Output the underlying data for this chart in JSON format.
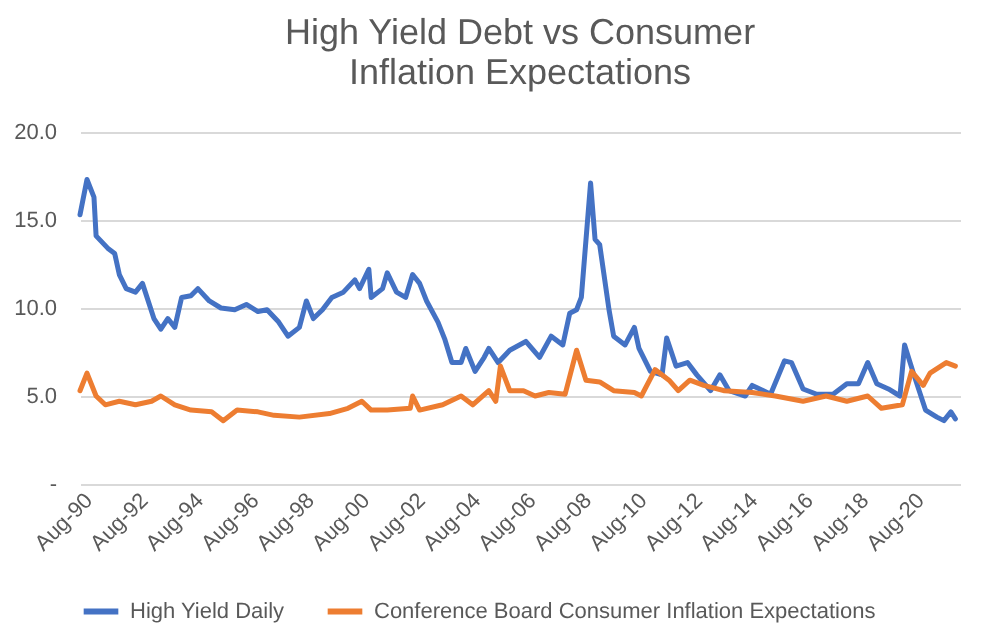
{
  "chart_data": {
    "type": "line",
    "title": "High Yield Debt vs Consumer Inflation Expectations",
    "xlim": [
      "1990-08",
      "2022-05"
    ],
    "xticks": [
      {
        "value": "1990-08",
        "label": "Aug-90"
      },
      {
        "value": "1992-08",
        "label": "Aug-92"
      },
      {
        "value": "1994-08",
        "label": "Aug-94"
      },
      {
        "value": "1996-08",
        "label": "Aug-96"
      },
      {
        "value": "1998-08",
        "label": "Aug-98"
      },
      {
        "value": "2000-08",
        "label": "Aug-00"
      },
      {
        "value": "2002-08",
        "label": "Aug-02"
      },
      {
        "value": "2004-08",
        "label": "Aug-04"
      },
      {
        "value": "2006-08",
        "label": "Aug-06"
      },
      {
        "value": "2008-08",
        "label": "Aug-08"
      },
      {
        "value": "2010-08",
        "label": "Aug-10"
      },
      {
        "value": "2012-08",
        "label": "Aug-12"
      },
      {
        "value": "2014-08",
        "label": "Aug-14"
      },
      {
        "value": "2016-08",
        "label": "Aug-16"
      },
      {
        "value": "2018-08",
        "label": "Aug-18"
      },
      {
        "value": "2020-08",
        "label": "Aug-20"
      }
    ],
    "ylim": [
      0,
      20
    ],
    "yticks": [
      {
        "value": 0,
        "label": "-"
      },
      {
        "value": 5,
        "label": "5.0"
      },
      {
        "value": 10,
        "label": "10.0"
      },
      {
        "value": 15,
        "label": "15.0"
      },
      {
        "value": 20,
        "label": "20.0"
      }
    ],
    "grid": "y",
    "legend": "bottom",
    "marker": "none",
    "line_style": "solid",
    "series": [
      {
        "name": "High Yield Daily",
        "color": "#4472c4",
        "x": [
          "1990-08",
          "1990-11",
          "1991-02",
          "1991-03",
          "1991-08",
          "1991-11",
          "1992-01",
          "1992-04",
          "1992-08",
          "1992-11",
          "1993-04",
          "1993-07",
          "1993-10",
          "1994-01",
          "1994-04",
          "1994-08",
          "1994-11",
          "1995-04",
          "1995-09",
          "1996-03",
          "1996-08",
          "1997-01",
          "1997-05",
          "1997-10",
          "1998-02",
          "1998-07",
          "1998-10",
          "1999-01",
          "1999-05",
          "1999-09",
          "2000-02",
          "2000-07",
          "2000-09",
          "2001-01",
          "2001-02",
          "2001-07",
          "2001-09",
          "2002-01",
          "2002-05",
          "2002-08",
          "2002-11",
          "2003-02",
          "2003-07",
          "2003-10",
          "2004-01",
          "2004-05",
          "2004-07",
          "2004-11",
          "2005-03",
          "2005-05",
          "2005-09",
          "2006-02",
          "2006-09",
          "2007-03",
          "2007-08",
          "2008-01",
          "2008-04",
          "2008-07",
          "2008-09",
          "2009-01",
          "2009-03",
          "2009-05",
          "2009-09",
          "2009-11",
          "2010-04",
          "2010-08",
          "2010-10",
          "2011-03",
          "2011-08",
          "2011-10",
          "2012-02",
          "2012-07",
          "2012-11",
          "2013-05",
          "2013-09",
          "2014-01",
          "2014-08",
          "2014-11",
          "2015-07",
          "2016-01",
          "2016-04",
          "2016-09",
          "2017-03",
          "2017-10",
          "2018-04",
          "2018-09",
          "2019-01",
          "2019-05",
          "2019-10",
          "2020-03",
          "2020-05",
          "2020-09",
          "2021-02",
          "2021-07",
          "2021-10",
          "2022-01",
          "2022-03"
        ],
        "values": [
          15.3,
          17.3,
          16.3,
          14.1,
          13.4,
          13.1,
          11.9,
          11.1,
          10.9,
          11.4,
          9.4,
          8.8,
          9.4,
          8.9,
          10.6,
          10.7,
          11.1,
          10.4,
          10.0,
          9.9,
          10.2,
          9.8,
          9.9,
          9.2,
          8.4,
          8.9,
          10.4,
          9.4,
          9.9,
          10.6,
          10.9,
          11.6,
          11.1,
          12.2,
          10.6,
          11.1,
          12.0,
          10.9,
          10.6,
          11.9,
          11.4,
          10.4,
          9.2,
          8.2,
          6.9,
          6.9,
          7.7,
          6.4,
          7.2,
          7.7,
          6.9,
          7.6,
          8.1,
          7.2,
          8.4,
          7.9,
          9.7,
          9.9,
          10.6,
          17.1,
          13.9,
          13.6,
          9.9,
          8.4,
          7.9,
          8.9,
          7.7,
          6.4,
          6.2,
          8.3,
          6.7,
          6.9,
          6.2,
          5.3,
          6.2,
          5.3,
          5.0,
          5.6,
          5.1,
          7.0,
          6.9,
          5.4,
          5.1,
          5.1,
          5.7,
          5.7,
          6.9,
          5.7,
          5.4,
          5.0,
          7.9,
          6.2,
          4.2,
          3.8,
          3.6,
          4.1,
          3.7
        ]
      },
      {
        "name": "Conference Board Consumer Inflation Expectations",
        "color": "#ed7d31",
        "x": [
          "1990-08",
          "1990-11",
          "1991-03",
          "1991-07",
          "1992-01",
          "1992-08",
          "1993-03",
          "1993-07",
          "1994-01",
          "1994-08",
          "1995-05",
          "1995-10",
          "1996-04",
          "1997-01",
          "1997-08",
          "1998-07",
          "1999-08",
          "2000-04",
          "2000-10",
          "2001-02",
          "2001-09",
          "2002-07",
          "2002-08",
          "2002-11",
          "2003-09",
          "2004-05",
          "2004-10",
          "2005-05",
          "2005-08",
          "2005-10",
          "2006-02",
          "2006-08",
          "2007-01",
          "2007-07",
          "2008-02",
          "2008-07",
          "2008-11",
          "2009-05",
          "2009-11",
          "2010-08",
          "2010-11",
          "2011-05",
          "2011-11",
          "2012-03",
          "2012-08",
          "2013-02",
          "2013-11",
          "2014-11",
          "2015-09",
          "2016-09",
          "2017-07",
          "2018-04",
          "2019-01",
          "2019-07",
          "2020-04",
          "2020-08",
          "2021-01",
          "2021-04",
          "2021-11",
          "2022-03"
        ],
        "values": [
          5.3,
          6.3,
          5.0,
          4.5,
          4.7,
          4.5,
          4.7,
          5.0,
          4.5,
          4.2,
          4.1,
          3.6,
          4.2,
          4.1,
          3.9,
          3.8,
          4.0,
          4.3,
          4.7,
          4.2,
          4.2,
          4.3,
          5.0,
          4.2,
          4.5,
          5.0,
          4.5,
          5.3,
          4.7,
          6.7,
          5.3,
          5.3,
          5.0,
          5.2,
          5.1,
          7.6,
          5.9,
          5.8,
          5.3,
          5.2,
          5.0,
          6.5,
          5.9,
          5.3,
          5.9,
          5.6,
          5.3,
          5.2,
          5.0,
          4.7,
          5.0,
          4.7,
          5.0,
          4.3,
          4.5,
          6.4,
          5.6,
          6.3,
          6.9,
          6.7
        ]
      }
    ]
  }
}
